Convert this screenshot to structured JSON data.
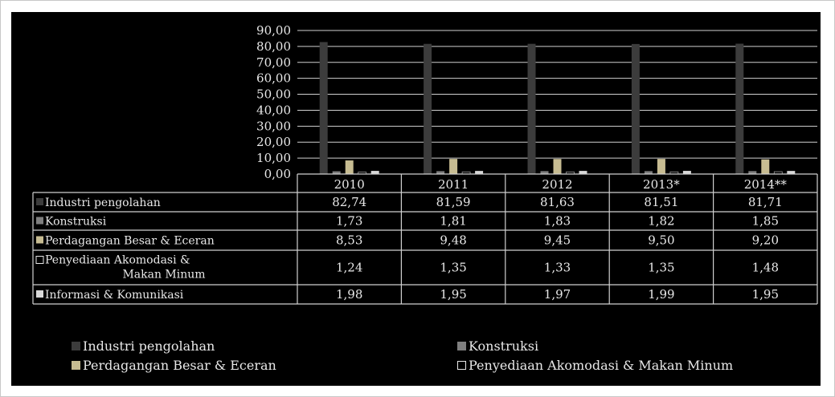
{
  "colors": {
    "background": "#000000",
    "text": "#e8e8e8",
    "gridline": "#d0d0d0"
  },
  "chart_data": {
    "type": "bar",
    "categories": [
      "2010",
      "2011",
      "2012",
      "2013*",
      "2014**"
    ],
    "yaxis_ticks": [
      "90,00",
      "80,00",
      "70,00",
      "60,00",
      "50,00",
      "40,00",
      "30,00",
      "20,00",
      "10,00",
      "0,00"
    ],
    "ylim": [
      0,
      90
    ],
    "grid": true,
    "series": [
      {
        "name": "Industri pengolahan",
        "color": "#3c3c3c",
        "values": [
          82.74,
          81.59,
          81.63,
          81.51,
          81.71
        ],
        "labels": [
          "82,74",
          "81,59",
          "81,63",
          "81,51",
          "81,71"
        ]
      },
      {
        "name": "Konstruksi",
        "color": "#7f7f7f",
        "values": [
          1.73,
          1.81,
          1.83,
          1.82,
          1.85
        ],
        "labels": [
          "1,73",
          "1,81",
          "1,83",
          "1,82",
          "1,85"
        ]
      },
      {
        "name": "Perdagangan Besar & Eceran",
        "color": "#c7bc92",
        "values": [
          8.53,
          9.48,
          9.45,
          9.5,
          9.2
        ],
        "labels": [
          "8,53",
          "9,48",
          "9,45",
          "9,50",
          "9,20"
        ]
      },
      {
        "name": "Penyediaan Akomodasi & Makan Minum",
        "color": "#000000",
        "values": [
          1.24,
          1.35,
          1.33,
          1.35,
          1.48
        ],
        "labels": [
          "1,24",
          "1,35",
          "1,33",
          "1,35",
          "1,48"
        ]
      },
      {
        "name": "Informasi & Komunikasi",
        "color": "#d8d8d8",
        "values": [
          1.98,
          1.95,
          1.97,
          1.99,
          1.95
        ],
        "labels": [
          "1,98",
          "1,95",
          "1,97",
          "1,99",
          "1,95"
        ]
      }
    ],
    "table_row_labels": [
      [
        "Industri pengolahan"
      ],
      [
        "Konstruksi"
      ],
      [
        "Perdagangan Besar & Eceran"
      ],
      [
        "Penyediaan Akomodasi &",
        "Makan Minum"
      ],
      [
        "Informasi & Komunikasi"
      ]
    ],
    "legend": [
      {
        "label": "Industri pengolahan",
        "series": 0
      },
      {
        "label": "Konstruksi",
        "series": 1
      },
      {
        "label": "Perdagangan Besar & Eceran",
        "series": 2
      },
      {
        "label": "Penyediaan Akomodasi & Makan Minum",
        "series": 3
      }
    ],
    "legend_position": "bottom"
  }
}
